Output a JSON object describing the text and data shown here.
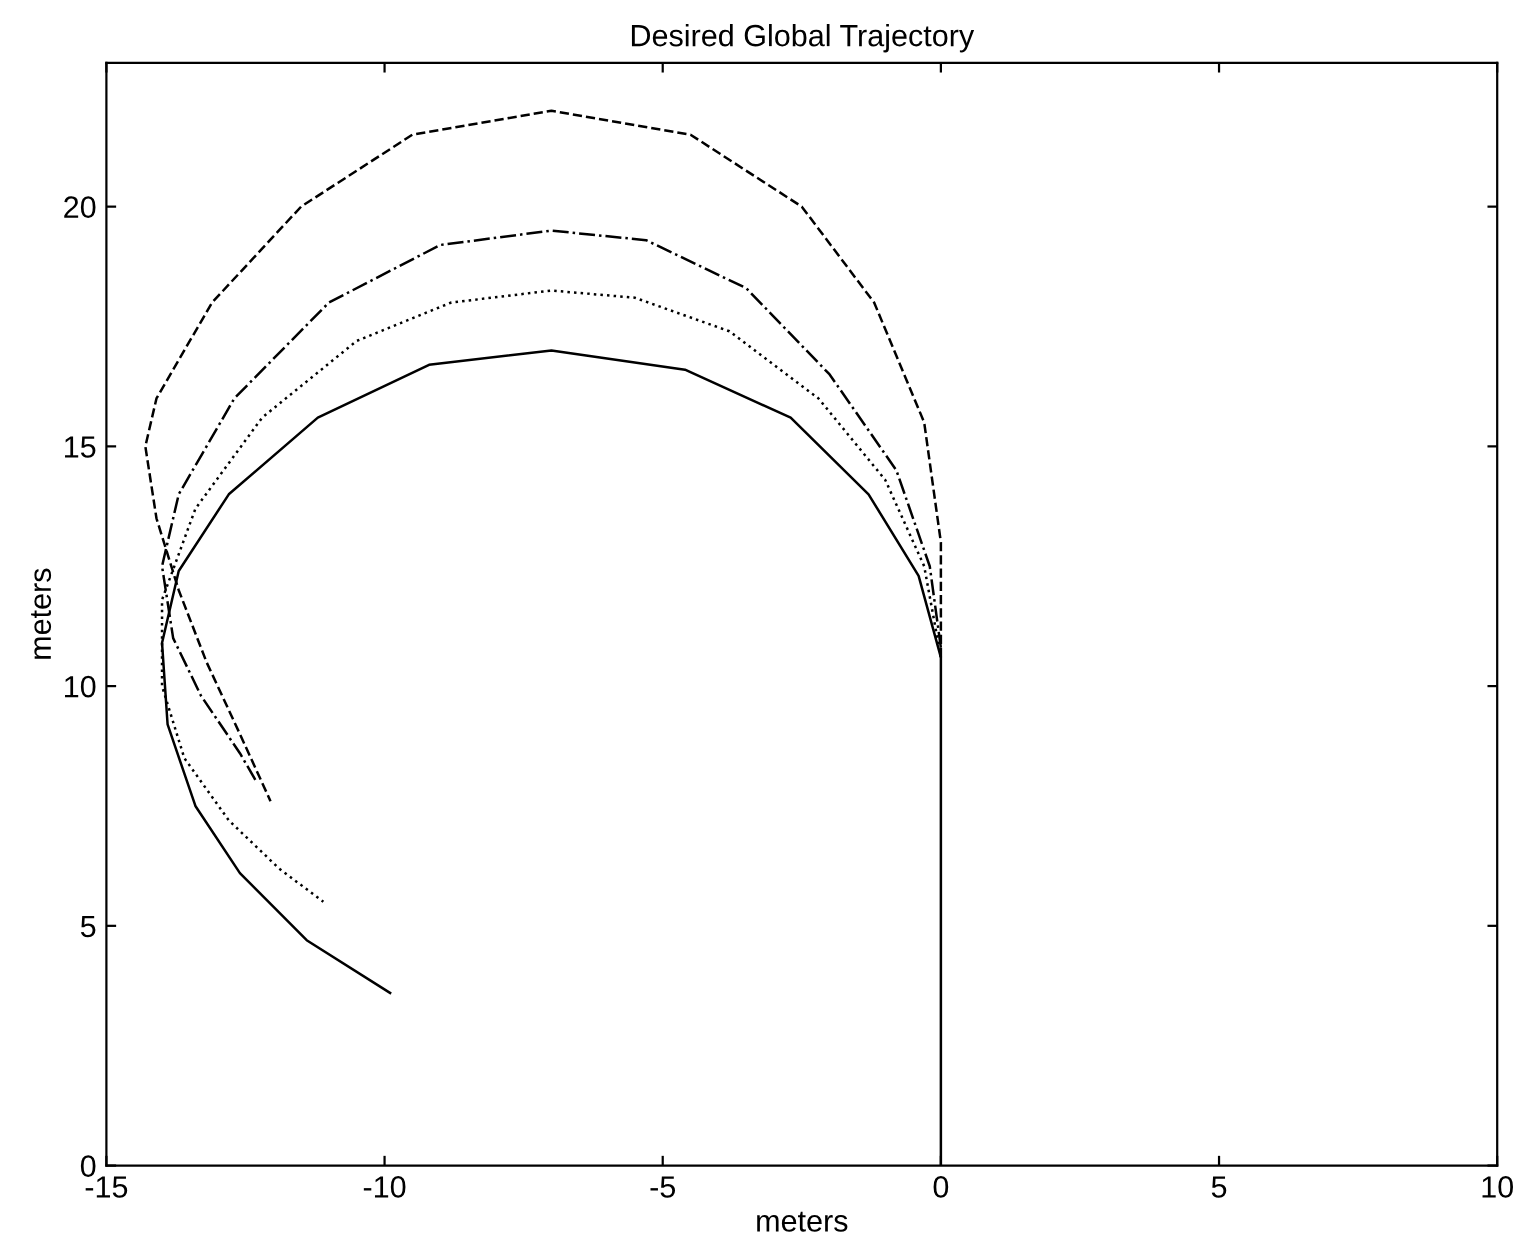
{
  "chart_data": {
    "type": "line",
    "title": "Desired Global Trajectory",
    "xlabel": "meters",
    "ylabel": "meters",
    "xlim": [
      -15,
      10
    ],
    "ylim": [
      0,
      23
    ],
    "xticks": [
      -15,
      -10,
      -5,
      0,
      5,
      10
    ],
    "yticks": [
      0,
      5,
      10,
      15,
      20
    ],
    "grid": false,
    "legend": false,
    "marker": "none",
    "series": [
      {
        "color": "#000000",
        "line_style": "solid",
        "x": [
          0,
          0,
          -0.4,
          -1.3,
          -2.7,
          -4.6,
          -7,
          -9.2,
          -11.2,
          -12.8,
          -13.7,
          -14,
          -13.9,
          -13.4,
          -12.6,
          -11.4,
          -9.9
        ],
        "values": [
          0,
          10.6,
          12.3,
          14,
          15.6,
          16.6,
          17,
          16.7,
          15.6,
          14,
          12.4,
          10.9,
          9.2,
          7.5,
          6.1,
          4.7,
          3.6
        ]
      },
      {
        "color": "#000000",
        "line_style": "dotted",
        "x": [
          0,
          -0.3,
          -1,
          -2.2,
          -3.8,
          -5.5,
          -7,
          -8.8,
          -10.5,
          -12.2,
          -13.4,
          -14,
          -14,
          -13.6,
          -12.8,
          -11.9,
          -11.1
        ],
        "values": [
          10.6,
          12.5,
          14.3,
          16,
          17.4,
          18.1,
          18.25,
          18,
          17.2,
          15.6,
          13.7,
          11.8,
          10,
          8.5,
          7.2,
          6.2,
          5.5
        ]
      },
      {
        "color": "#000000",
        "line_style": "dashdot",
        "x": [
          0,
          -0.2,
          -0.8,
          -2,
          -3.5,
          -5.3,
          -7,
          -9,
          -11,
          -12.7,
          -13.7,
          -14,
          -13.8,
          -13.3,
          -12.6,
          -12.3
        ],
        "values": [
          10.8,
          12.5,
          14.5,
          16.5,
          18.3,
          19.3,
          19.5,
          19.2,
          18,
          16,
          14,
          12.5,
          11,
          9.8,
          8.6,
          8.0
        ]
      },
      {
        "color": "#000000",
        "line_style": "dashed",
        "x": [
          0,
          0,
          -0.3,
          -1.2,
          -2.5,
          -4.5,
          -7,
          -9.5,
          -11.5,
          -13.1,
          -14.1,
          -14.3,
          -14.1,
          -13.7,
          -13.2,
          -12.6,
          -12.05
        ],
        "values": [
          10.6,
          13,
          15.5,
          18,
          20,
          21.5,
          22,
          21.5,
          20,
          18,
          16,
          15,
          13.5,
          12,
          10.5,
          9,
          7.6
        ]
      }
    ]
  }
}
